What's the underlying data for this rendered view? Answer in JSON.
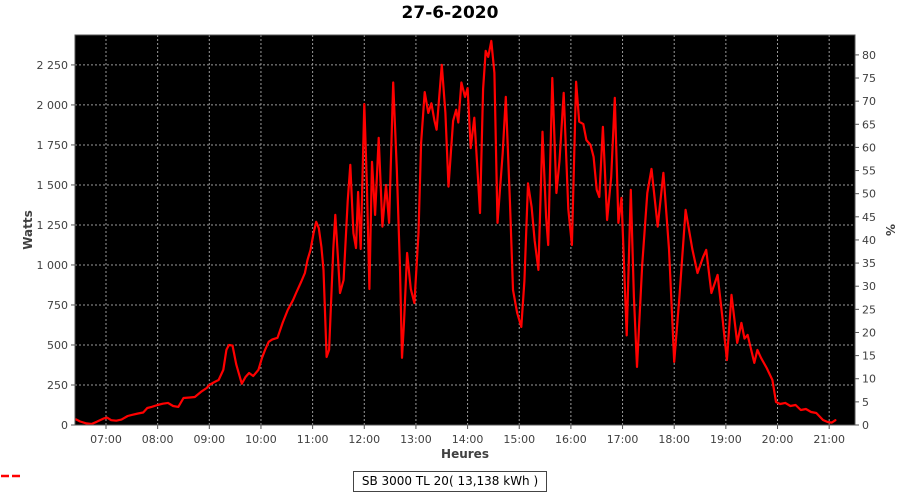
{
  "title": "27-6-2020",
  "axes": {
    "x_label": "Heures",
    "y_left_label": "Watts",
    "y_right_label": "%"
  },
  "legend": {
    "label": "SB 3000 TL 20( 13,138 kWh )",
    "marker_color": "#ff0000"
  },
  "colors": {
    "plot_background": "#000000",
    "gridline": "#9a9a9a",
    "axis": "#555555",
    "tick_label": "#404040",
    "series": "#ff0000",
    "page_background": "#ffffff"
  },
  "chart_data": {
    "type": "line",
    "title": "27-6-2020",
    "xlabel": "Heures",
    "ylabel_left": "Watts",
    "ylabel_right": "%",
    "grid": true,
    "legend_position": "bottom",
    "xlim_hours": [
      6.4,
      21.5
    ],
    "ylim_watts": [
      0,
      2437
    ],
    "ylim_percent": [
      0,
      84.3
    ],
    "x_ticks": {
      "values": [
        7,
        8,
        9,
        10,
        11,
        12,
        13,
        14,
        15,
        16,
        17,
        18,
        19,
        20,
        21
      ],
      "labels": [
        "07:00",
        "08:00",
        "09:00",
        "10:00",
        "11:00",
        "12:00",
        "13:00",
        "14:00",
        "15:00",
        "16:00",
        "17:00",
        "18:00",
        "19:00",
        "20:00",
        "21:00"
      ]
    },
    "y_left_ticks": {
      "values": [
        0,
        250,
        500,
        750,
        1000,
        1250,
        1500,
        1750,
        2000,
        2250
      ],
      "labels": [
        "0",
        "250",
        "500",
        "750",
        "1 000",
        "1 250",
        "1 500",
        "1 750",
        "2 000",
        "2 250"
      ]
    },
    "y_right_ticks": {
      "values": [
        0,
        5,
        10,
        15,
        20,
        25,
        30,
        35,
        40,
        45,
        50,
        55,
        60,
        65,
        70,
        75,
        80
      ],
      "labels": [
        "0",
        "5",
        "10",
        "15",
        "20",
        "25",
        "30",
        "35",
        "40",
        "45",
        "50",
        "55",
        "60",
        "65",
        "70",
        "75",
        "80"
      ]
    },
    "series": [
      {
        "name": "SB 3000 TL 20( 13,138 kWh )",
        "color": "#ff0000",
        "points": [
          [
            6.42,
            35
          ],
          [
            6.5,
            22
          ],
          [
            6.62,
            10
          ],
          [
            6.72,
            6
          ],
          [
            6.82,
            20
          ],
          [
            6.95,
            40
          ],
          [
            7.02,
            46
          ],
          [
            7.1,
            30
          ],
          [
            7.2,
            27
          ],
          [
            7.3,
            34
          ],
          [
            7.42,
            56
          ],
          [
            7.5,
            63
          ],
          [
            7.62,
            72
          ],
          [
            7.72,
            78
          ],
          [
            7.8,
            106
          ],
          [
            7.88,
            113
          ],
          [
            8.0,
            125
          ],
          [
            8.1,
            133
          ],
          [
            8.2,
            138
          ],
          [
            8.3,
            119
          ],
          [
            8.4,
            113
          ],
          [
            8.5,
            169
          ],
          [
            8.62,
            172
          ],
          [
            8.72,
            175
          ],
          [
            8.85,
            210
          ],
          [
            8.95,
            231
          ],
          [
            9.0,
            250
          ],
          [
            9.1,
            269
          ],
          [
            9.18,
            281
          ],
          [
            9.27,
            344
          ],
          [
            9.33,
            469
          ],
          [
            9.38,
            500
          ],
          [
            9.45,
            497
          ],
          [
            9.52,
            380
          ],
          [
            9.57,
            325
          ],
          [
            9.63,
            258
          ],
          [
            9.7,
            300
          ],
          [
            9.77,
            325
          ],
          [
            9.85,
            306
          ],
          [
            9.95,
            344
          ],
          [
            10.02,
            420
          ],
          [
            10.08,
            470
          ],
          [
            10.15,
            520
          ],
          [
            10.22,
            535
          ],
          [
            10.32,
            545
          ],
          [
            10.42,
            640
          ],
          [
            10.52,
            719
          ],
          [
            10.62,
            780
          ],
          [
            10.68,
            825
          ],
          [
            10.78,
            897
          ],
          [
            10.85,
            950
          ],
          [
            10.9,
            1031
          ],
          [
            10.96,
            1094
          ],
          [
            11.02,
            1200
          ],
          [
            11.07,
            1270
          ],
          [
            11.12,
            1230
          ],
          [
            11.17,
            1113
          ],
          [
            11.21,
            969
          ],
          [
            11.27,
            425
          ],
          [
            11.32,
            470
          ],
          [
            11.4,
            1100
          ],
          [
            11.44,
            1313
          ],
          [
            11.5,
            1000
          ],
          [
            11.53,
            825
          ],
          [
            11.6,
            906
          ],
          [
            11.68,
            1400
          ],
          [
            11.73,
            1625
          ],
          [
            11.79,
            1200
          ],
          [
            11.84,
            1106
          ],
          [
            11.88,
            1456
          ],
          [
            11.93,
            1100
          ],
          [
            12.0,
            2005
          ],
          [
            12.05,
            1500
          ],
          [
            12.1,
            850
          ],
          [
            12.15,
            1644
          ],
          [
            12.21,
            1313
          ],
          [
            12.28,
            1794
          ],
          [
            12.35,
            1240
          ],
          [
            12.42,
            1500
          ],
          [
            12.48,
            1263
          ],
          [
            12.56,
            2140
          ],
          [
            12.63,
            1600
          ],
          [
            12.69,
            1000
          ],
          [
            12.73,
            420
          ],
          [
            12.77,
            640
          ],
          [
            12.83,
            1075
          ],
          [
            12.9,
            850
          ],
          [
            12.97,
            762
          ],
          [
            13.05,
            1200
          ],
          [
            13.1,
            1763
          ],
          [
            13.17,
            2080
          ],
          [
            13.24,
            1950
          ],
          [
            13.3,
            2010
          ],
          [
            13.36,
            1900
          ],
          [
            13.4,
            1845
          ],
          [
            13.5,
            2250
          ],
          [
            13.57,
            1950
          ],
          [
            13.63,
            1490
          ],
          [
            13.72,
            1900
          ],
          [
            13.78,
            1970
          ],
          [
            13.82,
            1890
          ],
          [
            13.88,
            2140
          ],
          [
            13.95,
            2050
          ],
          [
            14.0,
            2105
          ],
          [
            14.06,
            1730
          ],
          [
            14.13,
            1920
          ],
          [
            14.2,
            1550
          ],
          [
            14.24,
            1325
          ],
          [
            14.3,
            2100
          ],
          [
            14.35,
            2338
          ],
          [
            14.4,
            2300
          ],
          [
            14.46,
            2400
          ],
          [
            14.52,
            2200
          ],
          [
            14.58,
            1263
          ],
          [
            14.68,
            1700
          ],
          [
            14.74,
            2050
          ],
          [
            14.82,
            1400
          ],
          [
            14.88,
            844
          ],
          [
            14.96,
            700
          ],
          [
            15.04,
            613
          ],
          [
            15.1,
            900
          ],
          [
            15.17,
            1510
          ],
          [
            15.24,
            1363
          ],
          [
            15.3,
            1150
          ],
          [
            15.37,
            969
          ],
          [
            15.45,
            1833
          ],
          [
            15.52,
            1300
          ],
          [
            15.56,
            1125
          ],
          [
            15.64,
            2168
          ],
          [
            15.72,
            1450
          ],
          [
            15.78,
            1650
          ],
          [
            15.86,
            2075
          ],
          [
            15.95,
            1350
          ],
          [
            16.02,
            1125
          ],
          [
            16.1,
            2145
          ],
          [
            16.16,
            1895
          ],
          [
            16.24,
            1880
          ],
          [
            16.3,
            1780
          ],
          [
            16.38,
            1750
          ],
          [
            16.44,
            1675
          ],
          [
            16.5,
            1470
          ],
          [
            16.55,
            1425
          ],
          [
            16.62,
            1863
          ],
          [
            16.7,
            1281
          ],
          [
            16.78,
            1550
          ],
          [
            16.85,
            2044
          ],
          [
            16.92,
            1263
          ],
          [
            16.98,
            1420
          ],
          [
            17.08,
            560
          ],
          [
            17.16,
            1469
          ],
          [
            17.22,
            800
          ],
          [
            17.28,
            363
          ],
          [
            17.38,
            1000
          ],
          [
            17.48,
            1450
          ],
          [
            17.56,
            1600
          ],
          [
            17.68,
            1240
          ],
          [
            17.79,
            1575
          ],
          [
            17.9,
            1100
          ],
          [
            18.0,
            394
          ],
          [
            18.1,
            800
          ],
          [
            18.22,
            1344
          ],
          [
            18.35,
            1100
          ],
          [
            18.45,
            950
          ],
          [
            18.56,
            1050
          ],
          [
            18.62,
            1094
          ],
          [
            18.72,
            825
          ],
          [
            18.84,
            938
          ],
          [
            18.94,
            650
          ],
          [
            19.02,
            406
          ],
          [
            19.11,
            813
          ],
          [
            19.22,
            513
          ],
          [
            19.3,
            638
          ],
          [
            19.36,
            540
          ],
          [
            19.42,
            563
          ],
          [
            19.55,
            388
          ],
          [
            19.61,
            469
          ],
          [
            19.68,
            420
          ],
          [
            19.79,
            356
          ],
          [
            19.9,
            281
          ],
          [
            19.97,
            144
          ],
          [
            20.05,
            131
          ],
          [
            20.15,
            138
          ],
          [
            20.25,
            119
          ],
          [
            20.35,
            125
          ],
          [
            20.45,
            94
          ],
          [
            20.55,
            100
          ],
          [
            20.65,
            81
          ],
          [
            20.75,
            75
          ],
          [
            20.88,
            31
          ],
          [
            20.97,
            19
          ],
          [
            21.05,
            15
          ],
          [
            21.12,
            30
          ]
        ]
      }
    ]
  }
}
